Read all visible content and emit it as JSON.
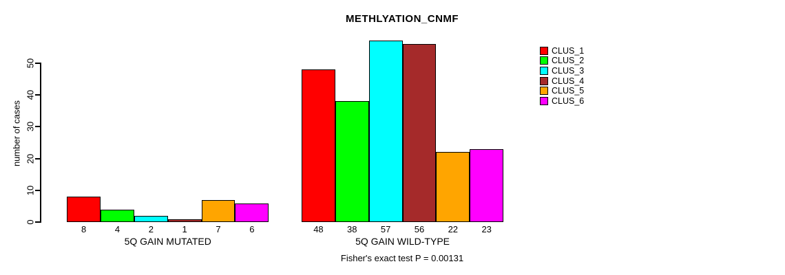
{
  "title": "METHLYATION_CNMF",
  "annotation": "Fisher's exact test P = 0.00131",
  "chart_data": {
    "type": "bar",
    "title": "METHLYATION_CNMF",
    "xlabel": "",
    "ylabel": "number of cases",
    "yticks": [
      "0",
      "10",
      "20",
      "30",
      "40",
      "50"
    ],
    "ytick_values": [
      0,
      10,
      20,
      30,
      40,
      50
    ],
    "ylim": [
      0,
      57
    ],
    "grid": false,
    "legend_position": "right-outside",
    "legend": [
      {
        "label": "CLUS_1",
        "color": "#FF0000"
      },
      {
        "label": "CLUS_2",
        "color": "#00FF00"
      },
      {
        "label": "CLUS_3",
        "color": "#00FFFF"
      },
      {
        "label": "CLUS_4",
        "color": "#A52A2A"
      },
      {
        "label": "CLUS_5",
        "color": "#FFA500"
      },
      {
        "label": "CLUS_6",
        "color": "#FF00FF"
      }
    ],
    "groups": [
      {
        "label": "5Q GAIN MUTATED",
        "series": [
          "CLUS_1",
          "CLUS_2",
          "CLUS_3",
          "CLUS_4",
          "CLUS_5",
          "CLUS_6"
        ],
        "values": [
          8,
          4,
          2,
          1,
          7,
          6
        ],
        "value_labels": [
          "8",
          "4",
          "2",
          "1",
          "7",
          "6"
        ]
      },
      {
        "label": "5Q GAIN WILD-TYPE",
        "series": [
          "CLUS_1",
          "CLUS_2",
          "CLUS_3",
          "CLUS_4",
          "CLUS_5",
          "CLUS_6"
        ],
        "values": [
          48,
          38,
          57,
          56,
          22,
          23
        ],
        "value_labels": [
          "48",
          "38",
          "57",
          "56",
          "22",
          "23"
        ]
      }
    ],
    "annotation": "Fisher's exact test P = 0.00131"
  }
}
